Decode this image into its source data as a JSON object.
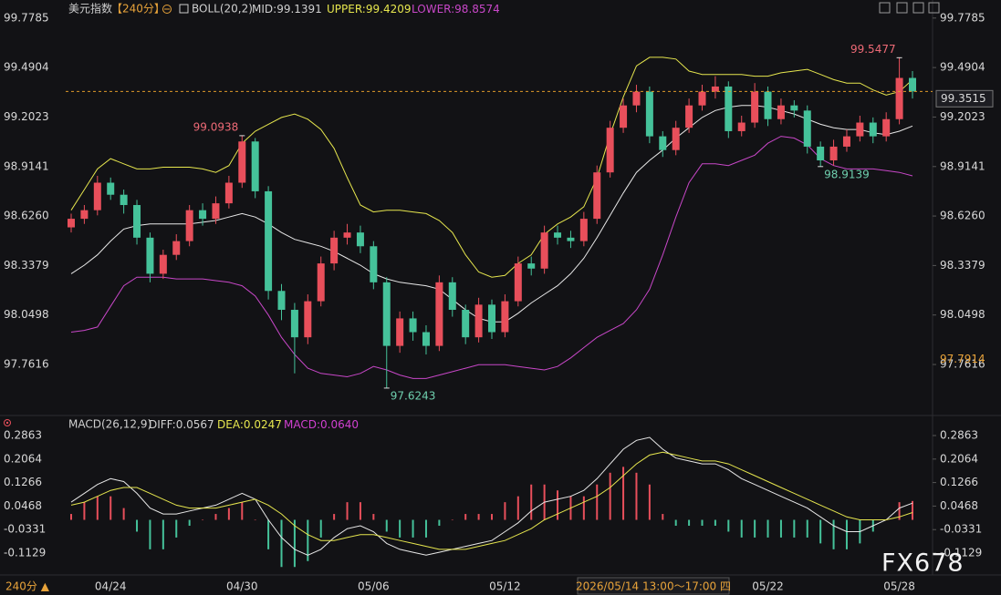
{
  "chart_data": [
    {
      "type": "candlestick",
      "title": "美元指数",
      "period": "【240分】",
      "indicator": "BOLL(20,2)",
      "categories": [
        null,
        null,
        null,
        "04/24",
        null,
        null,
        null,
        null,
        null,
        null,
        null,
        null,
        null,
        "04/30",
        null,
        null,
        null,
        null,
        null,
        null,
        null,
        null,
        null,
        "05/06",
        null,
        null,
        null,
        null,
        null,
        null,
        null,
        null,
        null,
        "05/12",
        null,
        null,
        null,
        null,
        null,
        null,
        null,
        null,
        null,
        null,
        null,
        null,
        null,
        null,
        null,
        null,
        null,
        null,
        null,
        "05/22",
        null,
        null,
        null,
        null,
        null,
        null,
        null,
        null,
        null,
        "05/28",
        null
      ],
      "ohlc": [
        [
          98.56,
          98.64,
          98.53,
          98.61
        ],
        [
          98.61,
          98.69,
          98.58,
          98.66
        ],
        [
          98.66,
          98.86,
          98.63,
          98.82
        ],
        [
          98.82,
          98.85,
          98.72,
          98.75
        ],
        [
          98.75,
          98.78,
          98.64,
          98.69
        ],
        [
          98.69,
          98.72,
          98.46,
          98.5
        ],
        [
          98.5,
          98.53,
          98.24,
          98.29
        ],
        [
          98.29,
          98.43,
          98.26,
          98.4
        ],
        [
          98.4,
          98.52,
          98.37,
          98.48
        ],
        [
          98.48,
          98.69,
          98.45,
          98.66
        ],
        [
          98.66,
          98.7,
          98.57,
          98.61
        ],
        [
          98.61,
          98.74,
          98.58,
          98.7
        ],
        [
          98.7,
          98.86,
          98.67,
          98.82
        ],
        [
          98.82,
          99.0938,
          98.79,
          99.06
        ],
        [
          99.06,
          99.08,
          98.73,
          98.77
        ],
        [
          98.77,
          98.8,
          98.14,
          98.19
        ],
        [
          98.19,
          98.23,
          98.02,
          98.08
        ],
        [
          98.08,
          98.12,
          97.71,
          97.92
        ],
        [
          97.92,
          98.17,
          97.88,
          98.13
        ],
        [
          98.13,
          98.39,
          98.1,
          98.35
        ],
        [
          98.35,
          98.54,
          98.31,
          98.5
        ],
        [
          98.5,
          98.58,
          98.46,
          98.53
        ],
        [
          98.53,
          98.57,
          98.41,
          98.45
        ],
        [
          98.45,
          98.48,
          98.2,
          98.24
        ],
        [
          98.24,
          98.27,
          97.6243,
          97.87
        ],
        [
          97.87,
          98.07,
          97.83,
          98.03
        ],
        [
          98.03,
          98.07,
          97.9,
          97.95
        ],
        [
          97.95,
          97.99,
          97.82,
          97.87
        ],
        [
          97.87,
          98.28,
          97.84,
          98.24
        ],
        [
          98.24,
          98.27,
          98.04,
          98.08
        ],
        [
          98.08,
          98.11,
          97.88,
          97.92
        ],
        [
          97.92,
          98.15,
          97.89,
          98.11
        ],
        [
          98.11,
          98.14,
          97.91,
          97.95
        ],
        [
          97.95,
          98.17,
          97.92,
          98.13
        ],
        [
          98.13,
          98.39,
          98.1,
          98.35
        ],
        [
          98.35,
          98.39,
          98.28,
          98.32
        ],
        [
          98.32,
          98.57,
          98.29,
          98.53
        ],
        [
          98.53,
          98.57,
          98.46,
          98.5
        ],
        [
          98.5,
          98.54,
          98.44,
          98.48
        ],
        [
          98.48,
          98.65,
          98.45,
          98.61
        ],
        [
          98.61,
          98.92,
          98.58,
          98.88
        ],
        [
          98.88,
          99.18,
          98.85,
          99.14
        ],
        [
          99.14,
          99.31,
          99.11,
          99.27
        ],
        [
          99.27,
          99.39,
          99.23,
          99.35
        ],
        [
          99.35,
          99.38,
          99.05,
          99.09
        ],
        [
          99.09,
          99.12,
          98.97,
          99.01
        ],
        [
          99.01,
          99.18,
          98.98,
          99.14
        ],
        [
          99.14,
          99.31,
          99.11,
          99.27
        ],
        [
          99.27,
          99.39,
          99.24,
          99.35
        ],
        [
          99.35,
          99.44,
          99.31,
          99.38
        ],
        [
          99.38,
          99.41,
          99.08,
          99.12
        ],
        [
          99.12,
          99.21,
          99.09,
          99.17
        ],
        [
          99.17,
          99.4,
          99.14,
          99.35
        ],
        [
          99.35,
          99.38,
          99.15,
          99.19
        ],
        [
          99.19,
          99.31,
          99.16,
          99.27
        ],
        [
          99.27,
          99.3,
          99.2,
          99.24
        ],
        [
          99.24,
          99.27,
          98.99,
          99.03
        ],
        [
          99.03,
          99.06,
          98.9139,
          98.95
        ],
        [
          98.95,
          99.07,
          98.92,
          99.03
        ],
        [
          99.03,
          99.13,
          99.0,
          99.09
        ],
        [
          99.09,
          99.21,
          99.06,
          99.17
        ],
        [
          99.17,
          99.2,
          99.05,
          99.09
        ],
        [
          99.09,
          99.23,
          99.06,
          99.19
        ],
        [
          99.19,
          99.5477,
          99.16,
          99.43
        ],
        [
          99.43,
          99.47,
          99.31,
          99.3515
        ]
      ],
      "up_color": "#e84f5b",
      "down_color": "#45c29a",
      "series": [
        {
          "label": "MID:",
          "last": 99.1391,
          "color": "#e8e8e8",
          "values": [
            98.29,
            98.34,
            98.4,
            98.48,
            98.55,
            98.57,
            98.58,
            98.58,
            98.58,
            98.58,
            98.59,
            98.6,
            98.62,
            98.64,
            98.62,
            98.58,
            98.53,
            98.49,
            98.47,
            98.45,
            98.42,
            98.38,
            98.34,
            98.29,
            98.26,
            98.24,
            98.23,
            98.22,
            98.2,
            98.14,
            98.08,
            98.03,
            98.01,
            98.01,
            98.06,
            98.12,
            98.17,
            98.22,
            98.29,
            98.38,
            98.5,
            98.63,
            98.76,
            98.88,
            98.95,
            99.01,
            99.08,
            99.14,
            99.2,
            99.24,
            99.26,
            99.27,
            99.27,
            99.26,
            99.24,
            99.22,
            99.19,
            99.16,
            99.14,
            99.13,
            99.13,
            99.11,
            99.1,
            99.12,
            99.15
          ]
        },
        {
          "label": "UPPER:",
          "last": 99.4209,
          "color": "#e6e64e",
          "values": [
            98.66,
            98.78,
            98.9,
            98.96,
            98.93,
            98.9,
            98.9,
            98.91,
            98.91,
            98.91,
            98.9,
            98.88,
            98.92,
            99.05,
            99.12,
            99.16,
            99.2,
            99.22,
            99.19,
            99.13,
            99.02,
            98.85,
            98.69,
            98.65,
            98.66,
            98.66,
            98.65,
            98.64,
            98.6,
            98.53,
            98.4,
            98.3,
            98.27,
            98.28,
            98.35,
            98.4,
            98.52,
            98.58,
            98.62,
            98.68,
            98.85,
            99.1,
            99.32,
            99.5,
            99.55,
            99.55,
            99.54,
            99.47,
            99.45,
            99.45,
            99.45,
            99.45,
            99.44,
            99.44,
            99.46,
            99.47,
            99.48,
            99.45,
            99.42,
            99.4,
            99.4,
            99.36,
            99.33,
            99.35,
            99.42
          ]
        },
        {
          "label": "LOWER:",
          "last": 98.8574,
          "color": "#c847c8",
          "values": [
            97.95,
            97.96,
            97.98,
            98.1,
            98.22,
            98.27,
            98.27,
            98.27,
            98.26,
            98.26,
            98.26,
            98.25,
            98.24,
            98.22,
            98.16,
            98.05,
            97.92,
            97.82,
            97.74,
            97.71,
            97.7,
            97.69,
            97.71,
            97.75,
            97.73,
            97.7,
            97.68,
            97.68,
            97.7,
            97.72,
            97.74,
            97.76,
            97.76,
            97.76,
            97.75,
            97.74,
            97.73,
            97.75,
            97.8,
            97.86,
            97.92,
            97.96,
            98.0,
            98.08,
            98.2,
            98.4,
            98.62,
            98.82,
            98.93,
            98.93,
            98.92,
            98.95,
            98.98,
            99.05,
            99.09,
            99.08,
            99.04,
            98.96,
            98.92,
            98.9,
            98.9,
            98.9,
            98.89,
            98.88,
            98.86
          ]
        }
      ],
      "ylim": [
        97.47,
        99.82
      ],
      "yticks": [
        99.7785,
        99.4904,
        99.2023,
        98.9141,
        {
          "value": 98.626,
          "label": "98.6260"
        },
        98.3379,
        98.0498,
        97.7616
      ],
      "last_price_color": "#e09a2a",
      "right_tag": 97.7914,
      "crosshair_label": "2026/05/14 13:00～17:00 四"
    },
    {
      "type": "macd",
      "title": "MACD(26,12,9)",
      "series": [
        {
          "label": "DIFF:",
          "last": 0.0567,
          "color": "#e8e8e8",
          "values": [
            0.06,
            0.09,
            0.12,
            0.14,
            0.13,
            0.09,
            0.04,
            0.02,
            0.02,
            0.03,
            0.04,
            0.05,
            0.07,
            0.09,
            0.07,
            0.0,
            -0.06,
            -0.1,
            -0.12,
            -0.1,
            -0.06,
            -0.03,
            -0.02,
            -0.04,
            -0.08,
            -0.1,
            -0.11,
            -0.12,
            -0.11,
            -0.1,
            -0.09,
            -0.08,
            -0.07,
            -0.04,
            -0.01,
            0.03,
            0.06,
            0.07,
            0.08,
            0.1,
            0.14,
            0.19,
            0.24,
            0.27,
            0.28,
            0.24,
            0.21,
            0.2,
            0.19,
            0.19,
            0.17,
            0.14,
            0.12,
            0.1,
            0.08,
            0.06,
            0.04,
            0.01,
            -0.02,
            -0.04,
            -0.04,
            -0.02,
            0.0,
            0.04,
            0.0567
          ]
        },
        {
          "label": "DEA:",
          "last": 0.0247,
          "color": "#e6e64e",
          "values": [
            0.05,
            0.06,
            0.08,
            0.1,
            0.11,
            0.11,
            0.09,
            0.07,
            0.05,
            0.04,
            0.04,
            0.04,
            0.05,
            0.06,
            0.07,
            0.05,
            0.02,
            -0.02,
            -0.05,
            -0.07,
            -0.07,
            -0.06,
            -0.05,
            -0.05,
            -0.06,
            -0.07,
            -0.08,
            -0.09,
            -0.1,
            -0.1,
            -0.1,
            -0.09,
            -0.08,
            -0.07,
            -0.05,
            -0.03,
            0.0,
            0.02,
            0.04,
            0.06,
            0.08,
            0.11,
            0.15,
            0.19,
            0.22,
            0.23,
            0.22,
            0.21,
            0.2,
            0.2,
            0.19,
            0.17,
            0.15,
            0.13,
            0.11,
            0.09,
            0.07,
            0.05,
            0.03,
            0.01,
            0.0,
            0.0,
            0.0,
            0.01,
            0.0247
          ]
        }
      ],
      "histogram": {
        "label": "MACD:",
        "last": {
          "value": 0.064,
          "label": "0.0640"
        },
        "color": "#d040d0",
        "values": [
          0.02,
          0.06,
          0.08,
          0.08,
          0.04,
          -0.04,
          -0.1,
          -0.1,
          -0.06,
          -0.02,
          0.0,
          0.02,
          0.04,
          0.06,
          0.0,
          -0.1,
          -0.16,
          -0.16,
          -0.14,
          -0.06,
          0.02,
          0.06,
          0.06,
          0.02,
          -0.04,
          -0.06,
          -0.06,
          -0.06,
          -0.02,
          0.0,
          0.02,
          0.02,
          0.02,
          0.06,
          0.08,
          0.12,
          0.12,
          0.1,
          0.08,
          0.08,
          0.12,
          0.16,
          0.18,
          0.16,
          0.12,
          0.02,
          -0.02,
          -0.02,
          -0.02,
          -0.02,
          -0.04,
          -0.06,
          -0.06,
          -0.06,
          -0.06,
          -0.06,
          -0.06,
          -0.08,
          -0.1,
          -0.1,
          -0.08,
          -0.04,
          0.0,
          0.06,
          0.064
        ]
      },
      "ylim": [
        -0.184,
        0.3265
      ],
      "yticks": [
        0.2863,
        0.2064,
        0.1266,
        0.0468,
        -0.0331,
        -0.1129
      ]
    }
  ],
  "footer_period": "240分 ▲",
  "watermark": "FX678"
}
